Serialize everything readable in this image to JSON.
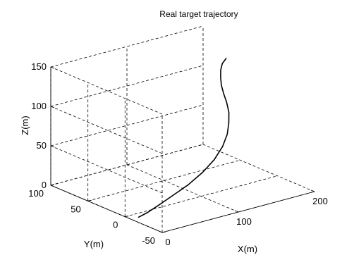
{
  "chart_data": {
    "type": "line",
    "title": "Real target trajectory",
    "xlabel": "X(m)",
    "ylabel": "Y(m)",
    "zlabel": "Z(m)",
    "xlim": [
      0,
      200
    ],
    "ylim": [
      -50,
      100
    ],
    "zlim": [
      0,
      150
    ],
    "x_ticks": [
      "0",
      "100",
      "200"
    ],
    "y_ticks": [
      "-50",
      "0",
      "50",
      "100"
    ],
    "z_ticks": [
      "0",
      "50",
      "100",
      "150"
    ],
    "grid": true,
    "series": [
      {
        "x": [
          10,
          22,
          38,
          58,
          80,
          102,
          120,
          134,
          143,
          148,
          150,
          149,
          147,
          146,
          147,
          149,
          153,
          160
        ],
        "y": [
          -8,
          -8,
          -7,
          -5,
          -3,
          0,
          3,
          6,
          9,
          12,
          14,
          16,
          18,
          20,
          22,
          24,
          26,
          28
        ],
        "z": [
          0,
          3,
          8,
          14,
          21,
          30,
          40,
          52,
          64,
          76,
          88,
          100,
          111,
          121,
          130,
          138,
          144,
          148
        ]
      }
    ]
  }
}
